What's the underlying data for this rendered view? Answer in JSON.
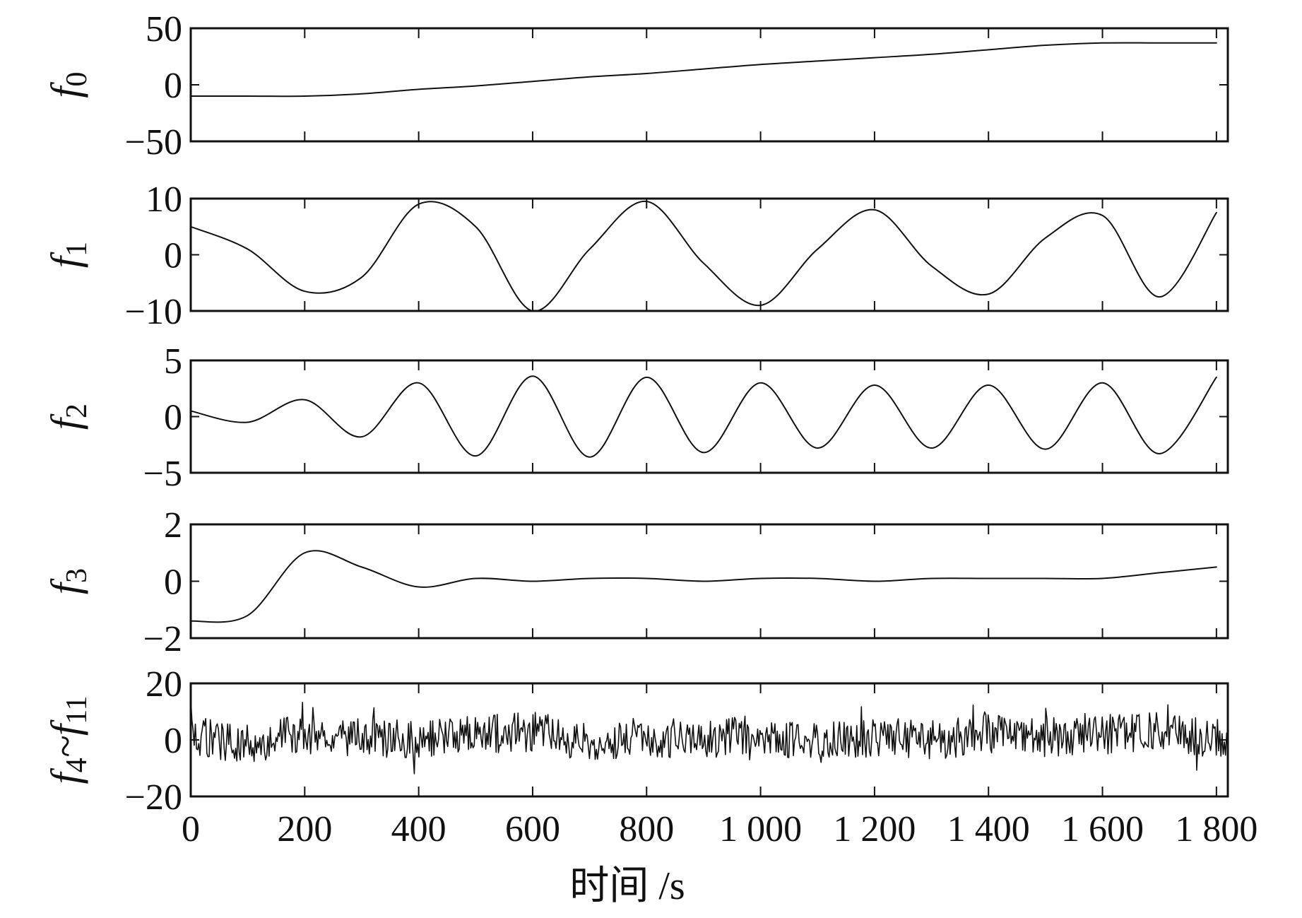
{
  "chart_data": {
    "type": "line",
    "xlabel": "时间 /s",
    "xlim": [
      0,
      1820
    ],
    "x_ticks": [
      0,
      200,
      400,
      600,
      800,
      1000,
      1200,
      1400,
      1600,
      1800
    ],
    "x_tick_labels": [
      "0",
      "200",
      "400",
      "600",
      "800",
      "1 000",
      "1 200",
      "1 400",
      "1 600",
      "1 800"
    ],
    "x": [
      0,
      100,
      200,
      300,
      400,
      500,
      600,
      700,
      800,
      900,
      1000,
      1100,
      1200,
      1300,
      1400,
      1500,
      1600,
      1700,
      1800
    ],
    "panels": [
      {
        "ylabel_main": "f",
        "ylabel_sub": "0",
        "ylim": [
          -50,
          50
        ],
        "y_ticks": [
          -50,
          0,
          50
        ],
        "y_tick_labels": [
          "−50",
          "0",
          "50"
        ],
        "values": [
          -10,
          -10,
          -10,
          -8,
          -4,
          -1,
          3,
          7,
          10,
          14,
          18,
          21,
          24,
          27,
          31,
          35,
          37,
          37,
          37
        ]
      },
      {
        "ylabel_main": "f",
        "ylabel_sub": "1",
        "ylim": [
          -10,
          10
        ],
        "y_ticks": [
          -10,
          0,
          10
        ],
        "y_tick_labels": [
          "−10",
          "0",
          "10"
        ],
        "values": [
          5,
          1,
          -6.5,
          -4,
          9,
          5,
          -10,
          1,
          9.5,
          -1.5,
          -9,
          1,
          8,
          -2,
          -7,
          3,
          7,
          -7.5,
          7.5
        ]
      },
      {
        "ylabel_main": "f",
        "ylabel_sub": "2",
        "ylim": [
          -5,
          5
        ],
        "y_ticks": [
          -5,
          0,
          5
        ],
        "y_tick_labels": [
          "−5",
          "0",
          "5"
        ],
        "values": [
          0.5,
          -0.5,
          1.5,
          -1.8,
          3,
          -3.5,
          3.6,
          -3.6,
          3.5,
          -3.2,
          3,
          -2.8,
          2.8,
          -2.8,
          2.8,
          -2.9,
          3,
          -3.3,
          3.5
        ]
      },
      {
        "ylabel_main": "f",
        "ylabel_sub": "3",
        "ylim": [
          -2,
          2
        ],
        "y_ticks": [
          -2,
          0,
          2
        ],
        "y_tick_labels": [
          "−2",
          "0",
          "2"
        ],
        "values": [
          -1.4,
          -1.2,
          1,
          0.5,
          -0.2,
          0.1,
          0,
          0.1,
          0.1,
          0,
          0.1,
          0.1,
          0,
          0.1,
          0.1,
          0.1,
          0.1,
          0.3,
          0.5
        ]
      },
      {
        "ylabel_main": "f",
        "ylabel_sub": "4",
        "ylabel_main_2": "f",
        "ylabel_sub_2": "11",
        "ylabel_sep": "~",
        "ylim": [
          -20,
          20
        ],
        "y_ticks": [
          -20,
          0,
          20
        ],
        "y_tick_labels": [
          "−20",
          "0",
          "20"
        ],
        "values": [
          1,
          -1,
          2,
          1,
          0,
          2,
          3,
          -1,
          1,
          0,
          2,
          -1,
          1,
          0,
          2,
          1,
          2,
          3,
          1
        ],
        "noise_amplitude": 7
      }
    ]
  }
}
